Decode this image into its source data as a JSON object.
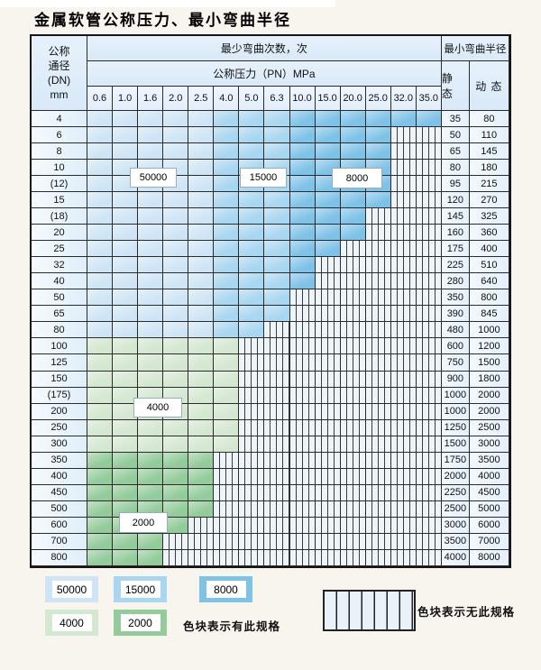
{
  "title": "金属软管公称压力、最小弯曲半径",
  "table": {
    "header": {
      "dn_lines": [
        "公称",
        "通径",
        "(DN)",
        "mm"
      ],
      "bend_cycles_label": "最少弯曲次数，次",
      "pressure_label": "公称压力（PN）MPa",
      "pressure_columns": [
        "0.6",
        "1.0",
        "1.6",
        "2.0",
        "2.5",
        "4.0",
        "5.0",
        "6.3",
        "10.0",
        "15.0",
        "20.0",
        "25.0",
        "32.0",
        "35.0"
      ],
      "min_bend_radius_label": "最小弯曲半径",
      "static_label": "静 态",
      "dynamic_label": "动 态"
    },
    "blue_shade_breaks": {
      "light_through": 5,
      "mid_through": 8
    },
    "rows": [
      {
        "dn": "4",
        "static": "35",
        "dynamic": "80",
        "colored_through": 14,
        "palette": "blue"
      },
      {
        "dn": "6",
        "static": "50",
        "dynamic": "110",
        "colored_through": 12,
        "palette": "blue"
      },
      {
        "dn": "8",
        "static": "65",
        "dynamic": "145",
        "colored_through": 12,
        "palette": "blue"
      },
      {
        "dn": "10",
        "static": "80",
        "dynamic": "180",
        "colored_through": 12,
        "palette": "blue"
      },
      {
        "dn": "(12)",
        "static": "95",
        "dynamic": "215",
        "colored_through": 12,
        "palette": "blue"
      },
      {
        "dn": "15",
        "static": "120",
        "dynamic": "270",
        "colored_through": 12,
        "palette": "blue"
      },
      {
        "dn": "(18)",
        "static": "145",
        "dynamic": "325",
        "colored_through": 11,
        "palette": "blue"
      },
      {
        "dn": "20",
        "static": "160",
        "dynamic": "360",
        "colored_through": 11,
        "palette": "blue"
      },
      {
        "dn": "25",
        "static": "175",
        "dynamic": "400",
        "colored_through": 10,
        "palette": "blue"
      },
      {
        "dn": "32",
        "static": "225",
        "dynamic": "510",
        "colored_through": 9,
        "palette": "blue"
      },
      {
        "dn": "40",
        "static": "280",
        "dynamic": "640",
        "colored_through": 9,
        "palette": "blue"
      },
      {
        "dn": "50",
        "static": "350",
        "dynamic": "800",
        "colored_through": 8,
        "palette": "blue"
      },
      {
        "dn": "65",
        "static": "390",
        "dynamic": "845",
        "colored_through": 8,
        "palette": "blue"
      },
      {
        "dn": "80",
        "static": "480",
        "dynamic": "1000",
        "colored_through": 7,
        "palette": "blue"
      },
      {
        "dn": "100",
        "static": "600",
        "dynamic": "1200",
        "colored_through": 6,
        "palette": "green4000"
      },
      {
        "dn": "125",
        "static": "750",
        "dynamic": "1500",
        "colored_through": 6,
        "palette": "green4000"
      },
      {
        "dn": "150",
        "static": "900",
        "dynamic": "1800",
        "colored_through": 6,
        "palette": "green4000"
      },
      {
        "dn": "(175)",
        "static": "1000",
        "dynamic": "2000",
        "colored_through": 6,
        "palette": "green4000"
      },
      {
        "dn": "200",
        "static": "1000",
        "dynamic": "2000",
        "colored_through": 6,
        "palette": "green4000"
      },
      {
        "dn": "250",
        "static": "1250",
        "dynamic": "2500",
        "colored_through": 6,
        "palette": "green4000"
      },
      {
        "dn": "300",
        "static": "1500",
        "dynamic": "3000",
        "colored_through": 6,
        "palette": "green4000"
      },
      {
        "dn": "350",
        "static": "1750",
        "dynamic": "3500",
        "colored_through": 5,
        "palette": "green2000"
      },
      {
        "dn": "400",
        "static": "2000",
        "dynamic": "4000",
        "colored_through": 5,
        "palette": "green2000"
      },
      {
        "dn": "450",
        "static": "2250",
        "dynamic": "4500",
        "colored_through": 5,
        "palette": "green2000"
      },
      {
        "dn": "500",
        "static": "2500",
        "dynamic": "5000",
        "colored_through": 5,
        "palette": "green2000"
      },
      {
        "dn": "600",
        "static": "3000",
        "dynamic": "6000",
        "colored_through": 4,
        "palette": "green2000"
      },
      {
        "dn": "700",
        "static": "3500",
        "dynamic": "7000",
        "colored_through": 3,
        "palette": "green2000"
      },
      {
        "dn": "800",
        "static": "4000",
        "dynamic": "8000",
        "colored_through": 3,
        "palette": "green2000"
      }
    ]
  },
  "colors": {
    "blue_50000": "#cfe5f5",
    "blue_15000": "#a9d6f0",
    "blue_8000": "#7fc2e8",
    "green_4000": "#d4e7d0",
    "green_2000": "#93cb9a",
    "hatch_bg": "#edf4fa",
    "grid_line": "#2b2b2b"
  },
  "overlay_labels": [
    "50000",
    "15000",
    "8000",
    "4000",
    "2000"
  ],
  "legend": {
    "items": [
      {
        "label": "50000",
        "color_key": "blue_50000"
      },
      {
        "label": "15000",
        "color_key": "blue_15000"
      },
      {
        "label": "8000",
        "color_key": "blue_8000"
      },
      {
        "label": "4000",
        "color_key": "green_4000"
      },
      {
        "label": "2000",
        "color_key": "green_2000"
      }
    ],
    "has_spec_text": "色块表示有此规格",
    "no_spec_text": "色块表示无此规格"
  }
}
